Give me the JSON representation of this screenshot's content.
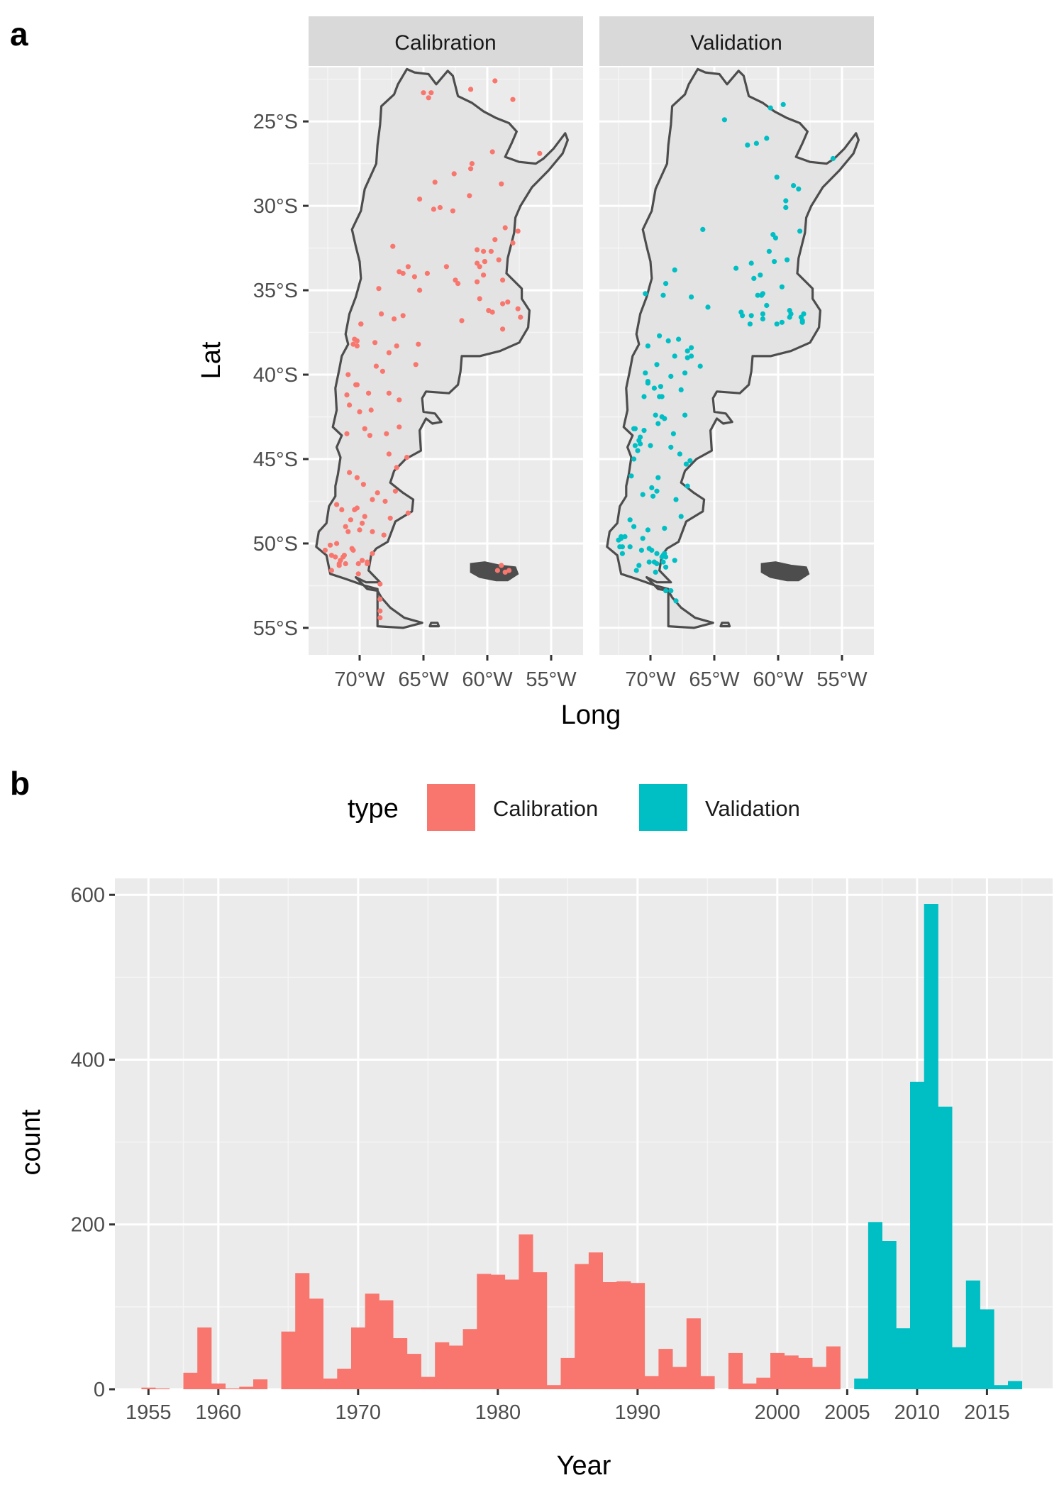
{
  "panel_a": {
    "letter": "a",
    "facets": [
      {
        "label": "Calibration",
        "color": "#F8766D"
      },
      {
        "label": "Validation",
        "color": "#00BFC4"
      }
    ],
    "ylabel": "Lat",
    "xlabel": "Long",
    "lat_ticks": [
      "25°S",
      "30°S",
      "35°S",
      "40°S",
      "45°S",
      "50°S",
      "55°S"
    ],
    "lon_ticks": [
      "70°W",
      "65°W",
      "60°W",
      "55°W"
    ]
  },
  "panel_b": {
    "letter": "b",
    "legend_title": "type",
    "legend_items": [
      {
        "label": "Calibration",
        "color": "#F8766D"
      },
      {
        "label": "Validation",
        "color": "#00BFC4"
      }
    ],
    "xlabel": "Year",
    "ylabel": "count",
    "x_tick_labels": [
      "1955",
      "1960",
      "1970",
      "1980",
      "1990",
      "2000",
      "2005",
      "2010",
      "2015"
    ],
    "y_tick_labels": [
      "0",
      "200",
      "400",
      "600"
    ]
  },
  "chart_data": [
    {
      "type": "scatter",
      "title": "",
      "facets": [
        "Calibration",
        "Validation"
      ],
      "xlabel": "Long",
      "ylabel": "Lat",
      "xlim": [
        -74,
        -52.5
      ],
      "ylim": [
        -56.6,
        -21.8
      ],
      "x_ticks": [
        -70,
        -65,
        -60,
        -55
      ],
      "y_ticks": [
        -25,
        -30,
        -35,
        -40,
        -45,
        -50,
        -55
      ],
      "series": [
        {
          "name": "Calibration",
          "color": "#F8766D",
          "x": [
            -64.4,
            -64.6,
            -65.0,
            -61.3,
            -59.4,
            -58.0,
            -55.9,
            -59.6,
            -61.2,
            -64.1,
            -62.6,
            -61.3,
            -64.2,
            -62.7,
            -65.3,
            -63.7,
            -61.4,
            -58.9,
            -58.6,
            -57.6,
            -59.4,
            -60.3,
            -59.7,
            -60.8,
            -58.0,
            -60.2,
            -62.3,
            -60.6,
            -60.3,
            -58.8,
            -59.1,
            -60.2,
            -62.5,
            -60.8,
            -60.8,
            -63.2,
            -58.4,
            -60.6,
            -58.8,
            -59.9,
            -59.6,
            -57.6,
            -57.4,
            -58.8,
            -62.0,
            -66.2,
            -66.9,
            -67.4,
            -68.5,
            -65.7,
            -67.3,
            -65.3,
            -66.6,
            -66.6,
            -64.7,
            -68.3,
            -69.9,
            -65.6,
            -67.1,
            -69.9,
            -70.4,
            -68.8,
            -70.2,
            -70.5,
            -70.2,
            -68.7,
            -67.7,
            -65.4,
            -68.2,
            -70.3,
            -69.3,
            -67.7,
            -71.0,
            -70.9,
            -70.8,
            -70.2,
            -66.9,
            -70.0,
            -69.6,
            -69.1,
            -66.9,
            -71.0,
            -67.9,
            -69.2,
            -70.8,
            -67.7,
            -66.3,
            -67.1,
            -69.0,
            -67.2,
            -71.4,
            -70.2,
            -68.6,
            -70.2,
            -69.7,
            -68.0,
            -71.8,
            -66.2,
            -68.1,
            -67.6,
            -70.9,
            -70.4,
            -69.8,
            -70.7,
            -69.6,
            -71.1,
            -69.0,
            -70.0,
            -70.5,
            -69.4,
            -69.4,
            -70.6,
            -71.6,
            -71.1,
            -71.9,
            -72.3,
            -71.8,
            -69.8,
            -71.5,
            -71.3,
            -71.2,
            -69.0,
            -69.4,
            -70.1,
            -71.6,
            -70.1,
            -72.2,
            -72.2,
            -72.7,
            -68.4,
            -68.4,
            -68.4,
            -68.4,
            -58.9,
            -58.3,
            -58.6,
            -59.2
          ],
          "y": [
            -23.3,
            -23.6,
            -23.3,
            -23.1,
            -22.6,
            -23.7,
            -26.9,
            -26.8,
            -27.5,
            -28.6,
            -28.1,
            -27.8,
            -30.2,
            -30.3,
            -29.6,
            -30.1,
            -29.4,
            -28.7,
            -31.3,
            -31.5,
            -32.0,
            -32.7,
            -32.7,
            -32.6,
            -32.2,
            -33.3,
            -34.6,
            -33.6,
            -34.1,
            -34.4,
            -33.2,
            -33.3,
            -34.4,
            -33.4,
            -34.5,
            -33.6,
            -35.7,
            -35.5,
            -35.8,
            -36.2,
            -36.3,
            -36.1,
            -36.6,
            -37.3,
            -36.8,
            -33.6,
            -33.9,
            -32.4,
            -34.9,
            -34.2,
            -36.7,
            -35.0,
            -36.5,
            -34.0,
            -34.0,
            -36.4,
            -37.0,
            -39.4,
            -38.3,
            -37.0,
            -37.9,
            -38.1,
            -38.0,
            -38.2,
            -38.3,
            -39.5,
            -38.7,
            -38.2,
            -39.8,
            -40.6,
            -41.1,
            -41.1,
            -41.2,
            -40.0,
            -41.8,
            -40.6,
            -43.1,
            -42.2,
            -43.2,
            -42.1,
            -41.5,
            -43.5,
            -43.5,
            -43.6,
            -45.8,
            -44.7,
            -44.9,
            -45.5,
            -47.4,
            -46.9,
            -48.0,
            -47.9,
            -47.0,
            -46.1,
            -46.5,
            -47.5,
            -47.7,
            -48.2,
            -49.5,
            -48.5,
            -49.3,
            -48.0,
            -48.8,
            -48.6,
            -48.4,
            -49.0,
            -49.3,
            -49.2,
            -50.4,
            -51.2,
            -51.1,
            -50.3,
            -51.3,
            -51.2,
            -50.8,
            -50.1,
            -50.0,
            -51.0,
            -51.0,
            -50.8,
            -50.7,
            -50.6,
            -51.2,
            -51.2,
            -51.2,
            -51.8,
            -50.7,
            -51.6,
            -50.4,
            -52.4,
            -53.3,
            -54.0,
            -54.4,
            -51.3,
            -51.6,
            -51.7,
            -51.6
          ]
        },
        {
          "name": "Validation",
          "color": "#00BFC4",
          "x": [
            -64.2,
            -60.6,
            -59.6,
            -62.4,
            -61.7,
            -60.9,
            -55.7,
            -58.4,
            -59.4,
            -59.4,
            -60.1,
            -58.8,
            -60.4,
            -60.2,
            -58.3,
            -59.3,
            -60.3,
            -60.7,
            -59.7,
            -61.4,
            -62.1,
            -63.3,
            -61.6,
            -61.3,
            -61.2,
            -58.1,
            -58.2,
            -59.1,
            -61.2,
            -60.9,
            -62.1,
            -62.8,
            -61.2,
            -61.9,
            -59.7,
            -58.0,
            -58.1,
            -60.1,
            -59.0,
            -59.1,
            -62.2,
            -62.9,
            -65.9,
            -68.1,
            -68.8,
            -69.0,
            -66.8,
            -70.4,
            -65.5,
            -68.6,
            -66.1,
            -67.3,
            -66.8,
            -69.3,
            -66.8,
            -67.8,
            -70.2,
            -67.1,
            -68.1,
            -69.5,
            -68.4,
            -67.1,
            -69.7,
            -70.4,
            -69.1,
            -70.5,
            -70.2,
            -69.6,
            -69.3,
            -70.2,
            -67.6,
            -67.3,
            -69.1,
            -69.4,
            -69.2,
            -68.2,
            -70.5,
            -68.9,
            -71.2,
            -70.0,
            -68.4,
            -71.2,
            -70.9,
            -70.8,
            -71.0,
            -70.8,
            -71.3,
            -71.3,
            -67.7,
            -67.2,
            -66.9,
            -71.5,
            -67.1,
            -69.8,
            -69.4,
            -68.0,
            -69.9,
            -69.5,
            -70.6,
            -67.6,
            -68.9,
            -72.3,
            -71.3,
            -70.6,
            -71.6,
            -70.2,
            -72.5,
            -70.7,
            -69.9,
            -72.2,
            -70.1,
            -70.1,
            -71.6,
            -69.0,
            -69.5,
            -72.2,
            -69.0,
            -68.1,
            -68.9,
            -69.1,
            -68.8,
            -69.6,
            -69.5,
            -68.8,
            -72.3,
            -72.0,
            -72.4,
            -71.1,
            -70.9,
            -69.7,
            -68.8,
            -68.4,
            -68.0
          ],
          "y": [
            -24.9,
            -24.2,
            -24.0,
            -26.4,
            -26.3,
            -26.0,
            -27.2,
            -29.0,
            -29.7,
            -30.1,
            -28.3,
            -28.8,
            -31.7,
            -31.9,
            -31.5,
            -33.2,
            -33.3,
            -32.7,
            -34.8,
            -34.1,
            -33.4,
            -33.7,
            -35.3,
            -35.3,
            -36.4,
            -36.9,
            -36.6,
            -36.2,
            -36.7,
            -35.9,
            -36.5,
            -36.5,
            -35.2,
            -34.3,
            -36.9,
            -36.4,
            -36.8,
            -37.0,
            -36.4,
            -36.6,
            -37.0,
            -36.3,
            -31.4,
            -33.8,
            -34.6,
            -35.3,
            -35.4,
            -35.2,
            -36.0,
            -38.0,
            -39.5,
            -39.9,
            -38.9,
            -37.7,
            -38.4,
            -37.9,
            -38.3,
            -38.6,
            -38.9,
            -39.4,
            -40.1,
            -39.0,
            -40.8,
            -39.9,
            -41.3,
            -41.3,
            -40.4,
            -42.4,
            -41.3,
            -40.5,
            -40.9,
            -42.4,
            -42.5,
            -42.9,
            -40.7,
            -43.5,
            -43.3,
            -42.6,
            -43.2,
            -44.2,
            -44.3,
            -44.2,
            -43.9,
            -44.1,
            -44.5,
            -43.7,
            -43.2,
            -45.0,
            -44.7,
            -45.3,
            -45.1,
            -46.0,
            -46.6,
            -47.2,
            -46.1,
            -47.4,
            -46.7,
            -46.9,
            -47.1,
            -48.4,
            -49.1,
            -49.6,
            -49.0,
            -49.7,
            -48.6,
            -49.2,
            -49.8,
            -50.4,
            -50.4,
            -50.6,
            -51.1,
            -50.3,
            -50.2,
            -50.7,
            -51.2,
            -50.2,
            -51.1,
            -51.0,
            -50.6,
            -50.8,
            -50.8,
            -51.7,
            -50.6,
            -51.4,
            -49.7,
            -49.6,
            -50.2,
            -51.6,
            -51.3,
            -51.1,
            -52.8,
            -52.8,
            -53.4
          ]
        }
      ]
    },
    {
      "type": "bar",
      "title": "",
      "xlabel": "Year",
      "ylabel": "count",
      "ylim": [
        0,
        620
      ],
      "xlim": [
        1952.6,
        2019.7
      ],
      "x_ticks": [
        1955,
        1960,
        1970,
        1980,
        1990,
        2000,
        2005,
        2010,
        2015
      ],
      "y_ticks": [
        0,
        200,
        400,
        600
      ],
      "bin_width": 1,
      "series": [
        {
          "name": "Calibration",
          "color": "#F8766D",
          "bins": [
            1955,
            1956,
            1957,
            1958,
            1959,
            1960,
            1961,
            1962,
            1963,
            1964,
            1965,
            1966,
            1967,
            1968,
            1969,
            1970,
            1971,
            1972,
            1973,
            1974,
            1975,
            1976,
            1977,
            1978,
            1979,
            1980,
            1981,
            1982,
            1983,
            1984,
            1985,
            1986,
            1987,
            1988,
            1989,
            1990,
            1991,
            1992,
            1993,
            1994,
            1995,
            1996,
            1997,
            1998,
            1999,
            2000,
            2001,
            2002,
            2003,
            2004
          ],
          "values": [
            2,
            1,
            0,
            20,
            75,
            7,
            1,
            3,
            12,
            0,
            70,
            141,
            110,
            13,
            25,
            75,
            116,
            108,
            62,
            43,
            15,
            57,
            53,
            73,
            140,
            139,
            133,
            188,
            142,
            5,
            38,
            152,
            166,
            130,
            131,
            129,
            16,
            49,
            27,
            86,
            16,
            0,
            44,
            7,
            14,
            44,
            41,
            38,
            27,
            52
          ]
        },
        {
          "name": "Validation",
          "color": "#00BFC4",
          "bins": [
            2006,
            2007,
            2008,
            2009,
            2010,
            2011,
            2012,
            2013,
            2014,
            2015,
            2016,
            2017
          ],
          "values": [
            13,
            203,
            180,
            74,
            373,
            589,
            343,
            51,
            132,
            97,
            5,
            10
          ]
        }
      ]
    }
  ]
}
